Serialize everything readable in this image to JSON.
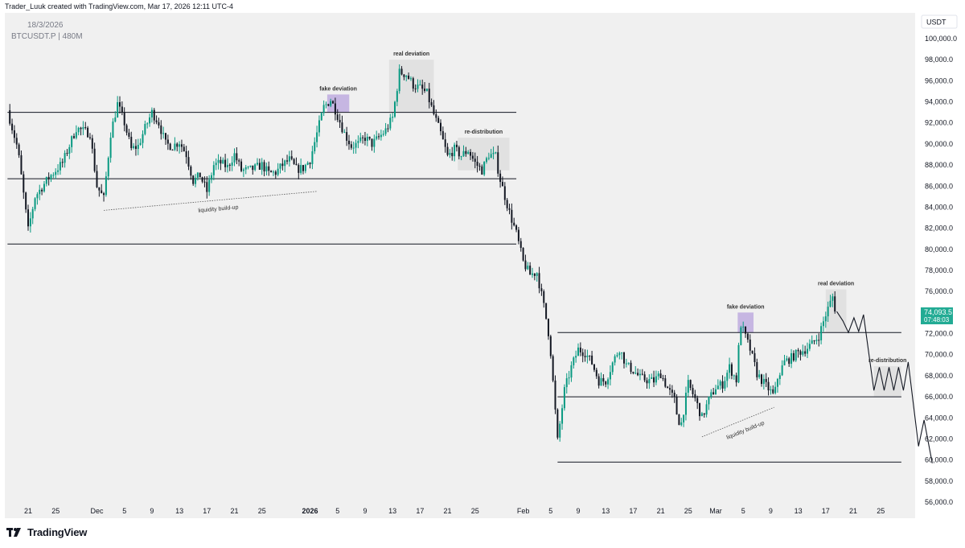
{
  "header": {
    "credit": "Trader_Luuk created with TradingView.com, Mar 17, 2026 12:11 UTC-4"
  },
  "legend": {
    "date": "18/3/2026",
    "symbol": "BTCUSDT.P | 480M"
  },
  "footer": {
    "brand": "TradingView"
  },
  "colors": {
    "up": "#089981",
    "down": "#131722",
    "price_badge": "#22ab94",
    "deviation_box": "#b39ddb",
    "zone_box": "#d6d6d6",
    "background": "#f0f0f0"
  },
  "chart_data": {
    "type": "candlestick",
    "symbol": "BTCUSDT.P",
    "interval": "480M",
    "currency": "USDT",
    "y_axis": {
      "min": 56000,
      "max": 100000,
      "ticks": [
        "100,000.0",
        "98,000.0",
        "96,000.0",
        "94,000.0",
        "92,000.0",
        "90,000.0",
        "88,000.0",
        "86,000.0",
        "84,000.0",
        "82,000.0",
        "80,000.0",
        "78,000.0",
        "76,000.0",
        "74,000.0",
        "72,000.0",
        "70,000.0",
        "68,000.0",
        "66,000.0",
        "64,000.0",
        "62,000.0",
        "60,000.0",
        "58,000.0",
        "56,000.0"
      ]
    },
    "x_axis": {
      "ticks": [
        {
          "label": "21",
          "day": 0
        },
        {
          "label": "25",
          "day": 4
        },
        {
          "label": "Dec",
          "day": 10,
          "bold": false
        },
        {
          "label": "5",
          "day": 14
        },
        {
          "label": "9",
          "day": 18
        },
        {
          "label": "13",
          "day": 22
        },
        {
          "label": "17",
          "day": 26
        },
        {
          "label": "21",
          "day": 30
        },
        {
          "label": "25",
          "day": 34
        },
        {
          "label": "2026",
          "day": 41,
          "bold": true
        },
        {
          "label": "5",
          "day": 45
        },
        {
          "label": "9",
          "day": 49
        },
        {
          "label": "13",
          "day": 53
        },
        {
          "label": "17",
          "day": 57
        },
        {
          "label": "21",
          "day": 61
        },
        {
          "label": "25",
          "day": 65
        },
        {
          "label": "Feb",
          "day": 72
        },
        {
          "label": "5",
          "day": 76
        },
        {
          "label": "9",
          "day": 80
        },
        {
          "label": "13",
          "day": 84
        },
        {
          "label": "17",
          "day": 88
        },
        {
          "label": "21",
          "day": 92
        },
        {
          "label": "25",
          "day": 96
        },
        {
          "label": "Mar",
          "day": 100
        },
        {
          "label": "5",
          "day": 104
        },
        {
          "label": "9",
          "day": 108
        },
        {
          "label": "13",
          "day": 112
        },
        {
          "label": "17",
          "day": 116
        },
        {
          "label": "21",
          "day": 120
        },
        {
          "label": "25",
          "day": 124
        }
      ]
    },
    "anchors": [
      [
        -3,
        93200
      ],
      [
        -1.5,
        89500
      ],
      [
        0,
        81800
      ],
      [
        1,
        85000
      ],
      [
        3,
        86800
      ],
      [
        5,
        88200
      ],
      [
        7,
        91500
      ],
      [
        9,
        91000
      ],
      [
        10,
        86000
      ],
      [
        11,
        84800
      ],
      [
        12,
        91000
      ],
      [
        13,
        93800
      ],
      [
        14,
        92000
      ],
      [
        15,
        89500
      ],
      [
        16,
        89800
      ],
      [
        17,
        91500
      ],
      [
        18,
        93000
      ],
      [
        19,
        92000
      ],
      [
        20,
        90000
      ],
      [
        21,
        89800
      ],
      [
        22,
        90200
      ],
      [
        23,
        89000
      ],
      [
        24,
        86500
      ],
      [
        25,
        87000
      ],
      [
        26,
        85500
      ],
      [
        27,
        88000
      ],
      [
        28,
        88200
      ],
      [
        29,
        87800
      ],
      [
        30,
        89000
      ],
      [
        31,
        87500
      ],
      [
        32,
        87500
      ],
      [
        33,
        87700
      ],
      [
        34,
        88000
      ],
      [
        35,
        87200
      ],
      [
        36,
        87300
      ],
      [
        37,
        88000
      ],
      [
        38,
        88500
      ],
      [
        39,
        87600
      ],
      [
        40,
        87700
      ],
      [
        41,
        88500
      ],
      [
        42,
        91000
      ],
      [
        43,
        93500
      ],
      [
        44,
        94200
      ],
      [
        44.7,
        93200
      ],
      [
        46,
        91000
      ],
      [
        47,
        89800
      ],
      [
        48,
        90000
      ],
      [
        49,
        90600
      ],
      [
        50,
        90000
      ],
      [
        51,
        90600
      ],
      [
        52,
        91300
      ],
      [
        53,
        92500
      ],
      [
        54,
        96800
      ],
      [
        55,
        96600
      ],
      [
        56,
        95600
      ],
      [
        57,
        95300
      ],
      [
        58,
        94800
      ],
      [
        59,
        92800
      ],
      [
        60,
        91000
      ],
      [
        61,
        88800
      ],
      [
        62,
        89500
      ],
      [
        63,
        88900
      ],
      [
        64,
        89400
      ],
      [
        65,
        88200
      ],
      [
        66,
        87500
      ],
      [
        67,
        89000
      ],
      [
        68,
        88800
      ],
      [
        68.5,
        87000
      ],
      [
        69,
        85800
      ],
      [
        70,
        83500
      ],
      [
        71,
        81500
      ],
      [
        72,
        78800
      ],
      [
        73,
        77600
      ],
      [
        74,
        77800
      ],
      [
        75,
        74600
      ],
      [
        75.6,
        72500
      ],
      [
        76,
        70200
      ],
      [
        77,
        61800
      ],
      [
        78,
        66600
      ],
      [
        79,
        68800
      ],
      [
        80,
        70500
      ],
      [
        81,
        70200
      ],
      [
        82,
        69200
      ],
      [
        83,
        67500
      ],
      [
        84,
        67500
      ],
      [
        85,
        69200
      ],
      [
        86,
        70600
      ],
      [
        87,
        69000
      ],
      [
        88,
        68500
      ],
      [
        89,
        67800
      ],
      [
        90,
        67600
      ],
      [
        91,
        67500
      ],
      [
        92,
        68200
      ],
      [
        93,
        66800
      ],
      [
        94,
        65700
      ],
      [
        94.5,
        63800
      ],
      [
        95,
        63500
      ],
      [
        96,
        67200
      ],
      [
        97,
        65800
      ],
      [
        98,
        64000
      ],
      [
        99,
        65700
      ],
      [
        100,
        66900
      ],
      [
        101,
        67200
      ],
      [
        102,
        68800
      ],
      [
        103,
        67600
      ],
      [
        103.6,
        73000
      ],
      [
        105,
        70500
      ],
      [
        106,
        68200
      ],
      [
        107,
        67300
      ],
      [
        108,
        66500
      ],
      [
        108.5,
        66000
      ],
      [
        109,
        67800
      ],
      [
        110,
        69300
      ],
      [
        111,
        69700
      ],
      [
        112,
        70200
      ],
      [
        113,
        70500
      ],
      [
        114,
        71000
      ],
      [
        115,
        71800
      ],
      [
        116,
        73800
      ],
      [
        117,
        75500
      ],
      [
        117.6,
        74093
      ]
    ],
    "levels": [
      {
        "price": 93000,
        "from": -3,
        "to": 71
      },
      {
        "price": 86700,
        "from": -3,
        "to": 71
      },
      {
        "price": 80500,
        "from": -3,
        "to": 71
      },
      {
        "price": 72100,
        "from": 77,
        "to": 127
      },
      {
        "price": 66000,
        "from": 77,
        "to": 127
      },
      {
        "price": 59800,
        "from": 77,
        "to": 127
      }
    ],
    "zones": [
      {
        "label": "fake deviation",
        "kind": "deviation",
        "from": 43.5,
        "to": 46.7,
        "low": 93000,
        "high": 94700
      },
      {
        "label": "real deviation",
        "kind": "zone",
        "from": 52.5,
        "to": 59,
        "low": 93000,
        "high": 98000
      },
      {
        "label": "re-distribution",
        "kind": "zone",
        "from": 62.5,
        "to": 70,
        "low": 87500,
        "high": 90600
      },
      {
        "label": "fake deviation",
        "kind": "deviation",
        "from": 103.2,
        "to": 105.5,
        "low": 72100,
        "high": 74000
      },
      {
        "label": "real deviation",
        "kind": "zone",
        "from": 116,
        "to": 119,
        "low": 72100,
        "high": 76200
      },
      {
        "label": "re-distribution",
        "kind": "zone",
        "from": 123,
        "to": 127,
        "low": 66000,
        "high": 68900
      }
    ],
    "liquidity_lines": [
      {
        "label": "liquidity build-up",
        "from": [
          11,
          83700
        ],
        "to": [
          42,
          85500
        ]
      },
      {
        "label": "liquidity build-up",
        "from": [
          98,
          62200
        ],
        "to": [
          108.5,
          65000
        ]
      }
    ],
    "projection": [
      [
        117.6,
        74093
      ],
      [
        118.5,
        73200
      ],
      [
        119.3,
        72100
      ],
      [
        120.1,
        73500
      ],
      [
        120.8,
        72200
      ],
      [
        121.5,
        73800
      ],
      [
        123,
        66600
      ],
      [
        123.8,
        68800
      ],
      [
        124.5,
        66600
      ],
      [
        125.2,
        68800
      ],
      [
        125.9,
        66600
      ],
      [
        126.6,
        68800
      ],
      [
        127.3,
        66600
      ],
      [
        128,
        69300
      ],
      [
        129.5,
        61300
      ],
      [
        130.3,
        63800
      ],
      [
        131.5,
        59700
      ]
    ],
    "last_price": {
      "value": "74,093.5",
      "countdown": "07:48:03"
    }
  }
}
